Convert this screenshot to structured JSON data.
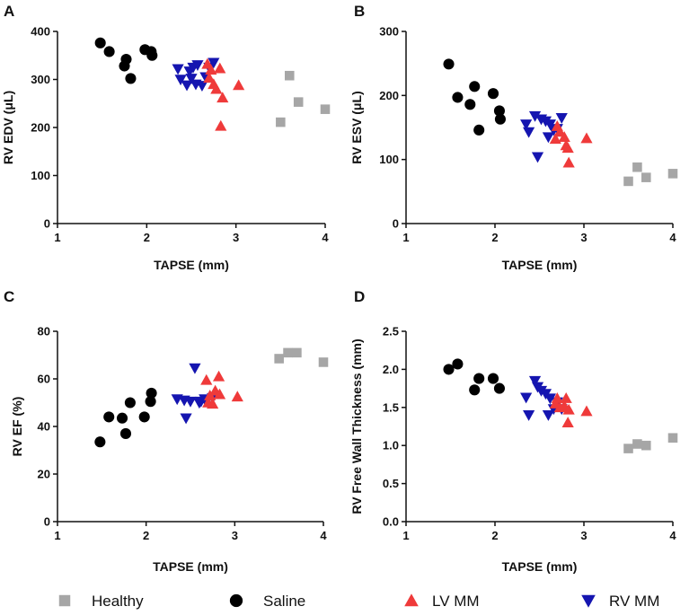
{
  "colors": {
    "Healthy": "#a6a6a6",
    "Saline": "#000000",
    "LV MM": "#ef3a3a",
    "RV MM": "#1515b0"
  },
  "legend": [
    {
      "label": "Healthy",
      "marker": "square"
    },
    {
      "label": "Saline",
      "marker": "circle"
    },
    {
      "label": "LV MM",
      "marker": "triangle-up"
    },
    {
      "label": "RV MM",
      "marker": "triangle-down"
    }
  ],
  "chart_data": [
    {
      "panel": "A",
      "type": "scatter",
      "xlabel": "TAPSE (mm)",
      "ylabel": "RV EDV (μL)",
      "xlim": [
        1,
        4
      ],
      "ylim": [
        0,
        400
      ],
      "xticks": [
        1,
        2,
        3,
        4
      ],
      "yticks": [
        0,
        100,
        200,
        300,
        400
      ],
      "series": [
        {
          "name": "Saline",
          "points": [
            [
              1.48,
              376
            ],
            [
              1.58,
              358
            ],
            [
              1.75,
              328
            ],
            [
              1.77,
              342
            ],
            [
              1.82,
              302
            ],
            [
              1.98,
              362
            ],
            [
              2.05,
              358
            ],
            [
              2.06,
              350
            ]
          ]
        },
        {
          "name": "RV MM",
          "points": [
            [
              2.35,
              322
            ],
            [
              2.38,
              300
            ],
            [
              2.45,
              288
            ],
            [
              2.48,
              317
            ],
            [
              2.5,
              302
            ],
            [
              2.52,
              325
            ],
            [
              2.55,
              290
            ],
            [
              2.57,
              330
            ],
            [
              2.62,
              287
            ],
            [
              2.66,
              305
            ],
            [
              2.7,
              325
            ],
            [
              2.75,
              335
            ]
          ]
        },
        {
          "name": "LV MM",
          "points": [
            [
              2.68,
              332
            ],
            [
              2.7,
              303
            ],
            [
              2.72,
              320
            ],
            [
              2.75,
              290
            ],
            [
              2.78,
              280
            ],
            [
              2.82,
              323
            ],
            [
              2.83,
              203
            ],
            [
              2.85,
              262
            ],
            [
              3.03,
              288
            ]
          ]
        },
        {
          "name": "Healthy",
          "points": [
            [
              3.5,
              211
            ],
            [
              3.6,
              308
            ],
            [
              3.7,
              253
            ],
            [
              4.0,
              238
            ]
          ]
        }
      ]
    },
    {
      "panel": "B",
      "type": "scatter",
      "xlabel": "TAPSE (mm)",
      "ylabel": "RV ESV (μL)",
      "xlim": [
        1,
        4
      ],
      "ylim": [
        0,
        300
      ],
      "xticks": [
        1,
        2,
        3,
        4
      ],
      "yticks": [
        0,
        100,
        200,
        300
      ],
      "series": [
        {
          "name": "Saline",
          "points": [
            [
              1.48,
              249
            ],
            [
              1.58,
              197
            ],
            [
              1.72,
              186
            ],
            [
              1.77,
              214
            ],
            [
              1.82,
              146
            ],
            [
              1.98,
              203
            ],
            [
              2.05,
              176
            ],
            [
              2.06,
              163
            ]
          ]
        },
        {
          "name": "RV MM",
          "points": [
            [
              2.35,
              155
            ],
            [
              2.38,
              143
            ],
            [
              2.45,
              168
            ],
            [
              2.48,
              104
            ],
            [
              2.52,
              163
            ],
            [
              2.57,
              160
            ],
            [
              2.6,
              135
            ],
            [
              2.62,
              155
            ],
            [
              2.66,
              146
            ],
            [
              2.7,
              148
            ],
            [
              2.75,
              165
            ]
          ]
        },
        {
          "name": "LV MM",
          "points": [
            [
              2.68,
              132
            ],
            [
              2.7,
              152
            ],
            [
              2.73,
              143
            ],
            [
              2.78,
              135
            ],
            [
              2.8,
              122
            ],
            [
              2.82,
              118
            ],
            [
              2.83,
              95
            ],
            [
              3.03,
              133
            ]
          ]
        },
        {
          "name": "Healthy",
          "points": [
            [
              3.5,
              66
            ],
            [
              3.6,
              88
            ],
            [
              3.7,
              72
            ],
            [
              4.0,
              78
            ]
          ]
        }
      ]
    },
    {
      "panel": "C",
      "type": "scatter",
      "xlabel": "TAPSE (mm)",
      "ylabel": "RV EF (%)",
      "xlim": [
        1,
        4
      ],
      "ylim": [
        0,
        80
      ],
      "xticks": [
        1,
        2,
        3,
        4
      ],
      "yticks": [
        0,
        20,
        40,
        60,
        80
      ],
      "series": [
        {
          "name": "Saline",
          "points": [
            [
              1.48,
              33.5
            ],
            [
              1.58,
              44
            ],
            [
              1.73,
              43.5
            ],
            [
              1.77,
              37
            ],
            [
              1.82,
              50
            ],
            [
              1.98,
              44
            ],
            [
              2.05,
              50.5
            ],
            [
              2.06,
              54
            ]
          ]
        },
        {
          "name": "RV MM",
          "points": [
            [
              2.35,
              51.5
            ],
            [
              2.43,
              51
            ],
            [
              2.45,
              43.5
            ],
            [
              2.5,
              50.5
            ],
            [
              2.55,
              64.5
            ],
            [
              2.6,
              50
            ],
            [
              2.62,
              50.5
            ],
            [
              2.66,
              51.5
            ],
            [
              2.75,
              52
            ]
          ]
        },
        {
          "name": "LV MM",
          "points": [
            [
              2.68,
              59.5
            ],
            [
              2.7,
              50
            ],
            [
              2.72,
              53
            ],
            [
              2.75,
              49.5
            ],
            [
              2.78,
              55
            ],
            [
              2.82,
              61
            ],
            [
              2.83,
              53.5
            ],
            [
              3.03,
              52.5
            ]
          ]
        },
        {
          "name": "Healthy",
          "points": [
            [
              3.5,
              68.5
            ],
            [
              3.6,
              71
            ],
            [
              3.7,
              71
            ],
            [
              4.0,
              67
            ]
          ]
        }
      ]
    },
    {
      "panel": "D",
      "type": "scatter",
      "xlabel": "TAPSE (mm)",
      "ylabel": "RV Free Wall Thickness (mm)",
      "xlim": [
        1,
        4
      ],
      "ylim": [
        0,
        2.5
      ],
      "xticks": [
        1,
        2,
        3,
        4
      ],
      "yticks": [
        0.0,
        0.5,
        1.0,
        1.5,
        2.0,
        2.5
      ],
      "yticklabels": [
        "0.0",
        "0.5",
        "1.0",
        "1.5",
        "2.0",
        "2.5"
      ],
      "series": [
        {
          "name": "Saline",
          "points": [
            [
              1.48,
              2.0
            ],
            [
              1.58,
              2.07
            ],
            [
              1.77,
              1.73
            ],
            [
              1.82,
              1.88
            ],
            [
              1.98,
              1.88
            ],
            [
              2.05,
              1.75
            ]
          ]
        },
        {
          "name": "RV MM",
          "points": [
            [
              2.35,
              1.63
            ],
            [
              2.38,
              1.4
            ],
            [
              2.45,
              1.85
            ],
            [
              2.48,
              1.77
            ],
            [
              2.52,
              1.72
            ],
            [
              2.57,
              1.68
            ],
            [
              2.6,
              1.4
            ],
            [
              2.62,
              1.62
            ],
            [
              2.66,
              1.48
            ],
            [
              2.7,
              1.57
            ],
            [
              2.75,
              1.48
            ]
          ]
        },
        {
          "name": "LV MM",
          "points": [
            [
              2.68,
              1.55
            ],
            [
              2.7,
              1.62
            ],
            [
              2.73,
              1.5
            ],
            [
              2.78,
              1.52
            ],
            [
              2.8,
              1.62
            ],
            [
              2.82,
              1.3
            ],
            [
              2.83,
              1.47
            ],
            [
              3.03,
              1.45
            ]
          ]
        },
        {
          "name": "Healthy",
          "points": [
            [
              3.5,
              0.96
            ],
            [
              3.6,
              1.02
            ],
            [
              3.7,
              1.0
            ],
            [
              4.0,
              1.1
            ]
          ]
        }
      ]
    }
  ]
}
